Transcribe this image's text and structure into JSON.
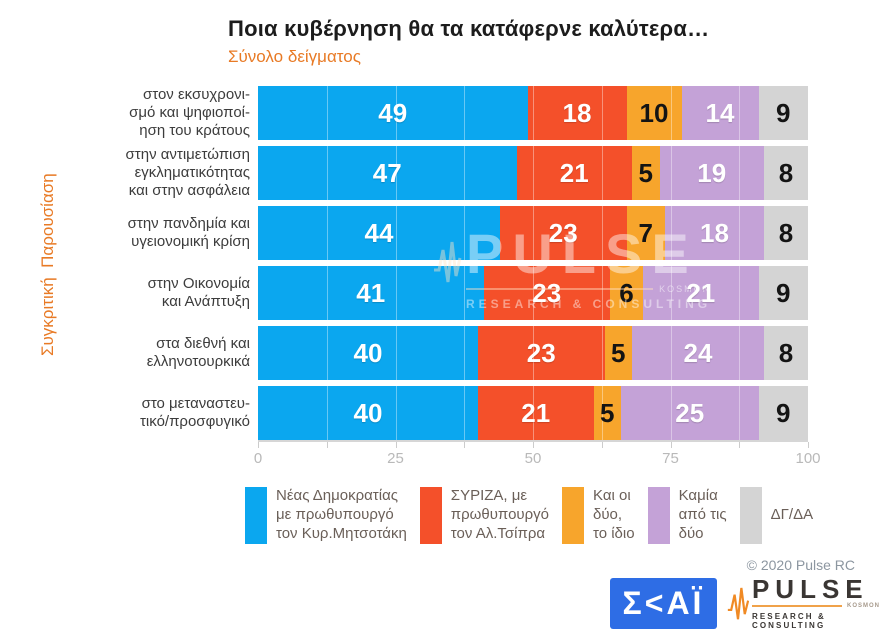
{
  "header": {
    "title": "Ποια κυβέρνηση θα τα κατάφερνε καλύτερα…",
    "subtitle": "Σύνολο δείγματος",
    "side_label": "Συγκριτική  Παρουσίαση"
  },
  "chart_data": {
    "type": "bar",
    "stacked": true,
    "orientation": "horizontal",
    "title": "Ποια κυβέρνηση θα τα κατάφερνε καλύτερα…",
    "subtitle": "Σύνολο δείγματος",
    "xlim": [
      0,
      100
    ],
    "x_ticks": [
      0,
      25,
      50,
      75,
      100
    ],
    "x_minor_step": 12.5,
    "grid": true,
    "legend_position": "bottom",
    "categories": [
      "στον εκσυχρονι-\nσμό και ψηφιοποί-\nηση του κράτους",
      "στην αντιμετώπιση\nεγκληματικότητας\nκαι στην ασφάλεια",
      "στην πανδημία και\nυγειονομική κρίση",
      "στην Οικονομία\nκαι Ανάπτυξη",
      "στα διεθνή και\nελληνοτουρκικά",
      "στο μεταναστευ-\nτικό/προσφυγικό"
    ],
    "series": [
      {
        "name": "Νέας Δημοκρατίας με πρωθυπουργό τον Κυρ.Μητσοτάκη",
        "color": "#0ba7ef",
        "value_color": "#ffffff",
        "values": [
          49,
          47,
          44,
          41,
          40,
          40
        ]
      },
      {
        "name": "ΣΥΡΙΖΑ, με πρωθυπουργό τον Αλ.Τσίπρα",
        "color": "#f4502a",
        "value_color": "#ffffff",
        "values": [
          18,
          21,
          23,
          23,
          23,
          21
        ]
      },
      {
        "name": "Και οι δύο, το ίδιο",
        "color": "#f7a52c",
        "value_color": "#141414",
        "values": [
          10,
          5,
          7,
          6,
          5,
          5
        ]
      },
      {
        "name": "Καμία από τις δύο",
        "color": "#c4a2d7",
        "value_color": "#ffffff",
        "values": [
          14,
          19,
          18,
          21,
          24,
          25
        ]
      },
      {
        "name": "ΔΓ/ΔΑ",
        "color": "#d4d4d4",
        "value_color": "#141414",
        "values": [
          9,
          8,
          8,
          9,
          8,
          9
        ]
      }
    ]
  },
  "legend": {
    "items": [
      {
        "label": "Νέας Δημοκρατίας\nμε πρωθυπουργό\nτον Κυρ.Μητσοτάκη",
        "color": "#0ba7ef",
        "center": false
      },
      {
        "label": "ΣΥΡΙΖΑ, με\nπρωθυπουργό\nτον Αλ.Τσίπρα",
        "color": "#f4502a",
        "center": false
      },
      {
        "label": "Και οι\nδύο,\nτο ίδιο",
        "color": "#f7a52c",
        "center": false
      },
      {
        "label": "Καμία\nαπό τις\nδύο",
        "color": "#c4a2d7",
        "center": false
      },
      {
        "label": "ΔΓ/ΔΑ",
        "color": "#d4d4d4",
        "center": true
      }
    ]
  },
  "watermark": {
    "text": "PULSE",
    "small": "KOSMON",
    "subtext": "RESEARCH & CONSULTING"
  },
  "footer": {
    "copyright": "© 2020 Pulse RC",
    "skai_logo_text": "Σ<ΑΪ",
    "pulse_logo_text": "PULSE",
    "pulse_logo_small": "KOSMON",
    "pulse_logo_subtext": "RESEARCH & CONSULTING"
  },
  "colors": {
    "accent_orange": "#e87a25",
    "skai_blue": "#2e6de5",
    "pulse_zigzag_orange": "#f08a24"
  }
}
